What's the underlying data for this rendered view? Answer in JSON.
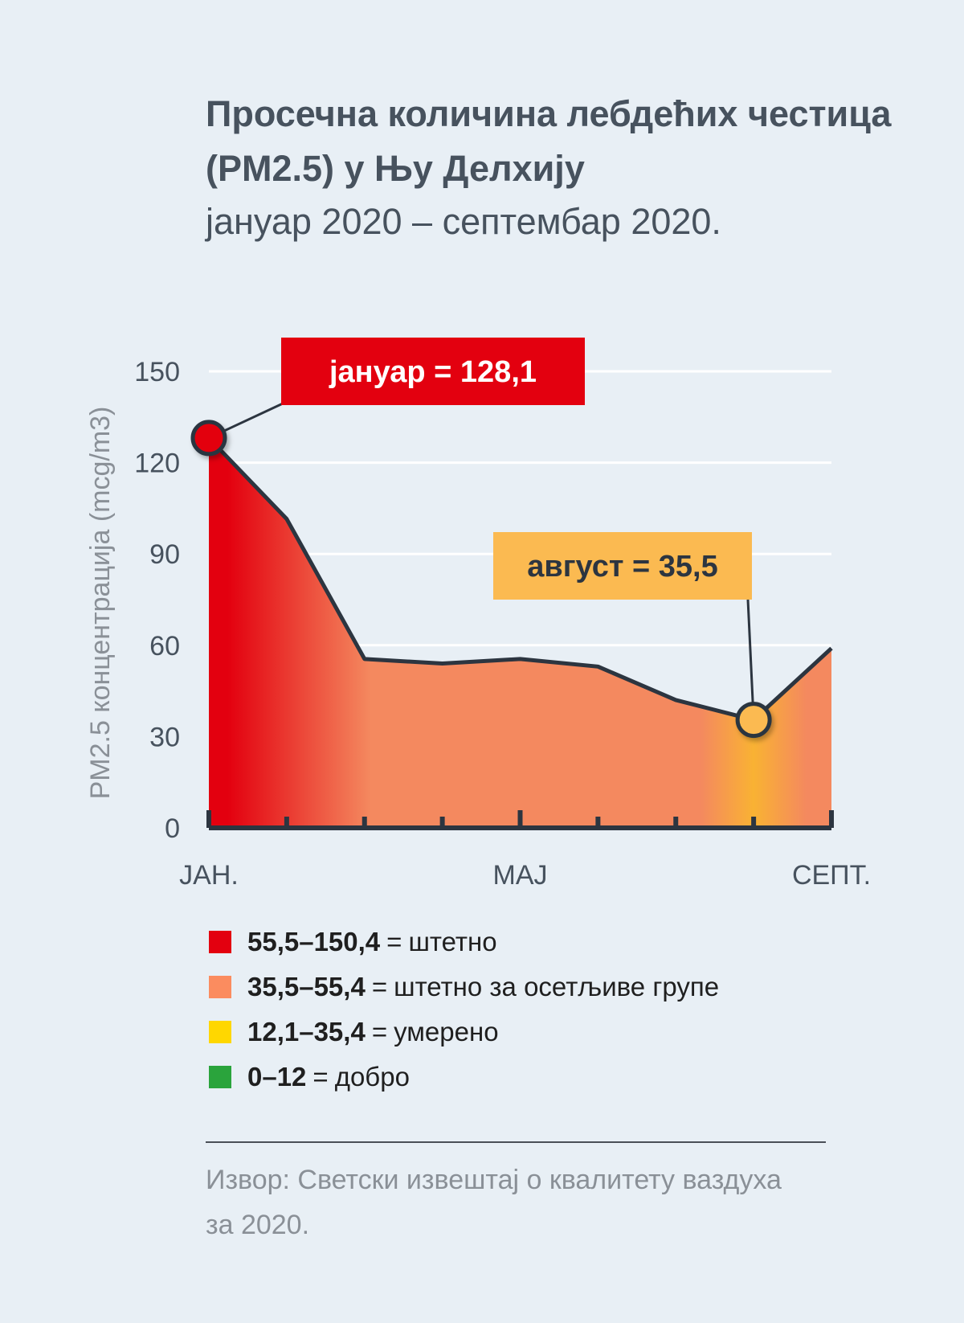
{
  "header": {
    "title": "Просечна количина лебдећих честица (PM2.5) у Њу Делхију",
    "subtitle": "јануар 2020 – септембар 2020."
  },
  "chart_data": {
    "type": "area",
    "ylabel": "PM2.5 концентрација (mcg/m3)",
    "ylim": [
      0,
      150
    ],
    "y_ticks": [
      "0",
      "30",
      "60",
      "90",
      "120",
      "150"
    ],
    "x_tick_labels": [
      {
        "index": 0,
        "label": "JAH."
      },
      {
        "index": 4,
        "label": "MAJ"
      },
      {
        "index": 8,
        "label": "СЕПТ."
      }
    ],
    "x": [
      0,
      1,
      2,
      3,
      4,
      5,
      6,
      7,
      8
    ],
    "values": [
      128.1,
      101.5,
      55.5,
      54.0,
      55.5,
      53.0,
      42.0,
      35.5,
      59.0
    ],
    "grid": true,
    "annotations": [
      {
        "index": 0,
        "text": "јануар = 128,1",
        "color": "#e3000f"
      },
      {
        "index": 7,
        "text": "август = 35,5",
        "color": "#fbba51"
      }
    ],
    "fill_colors": {
      "harmful": "#e3000f",
      "sensitive": "#f4895f",
      "moderate": "#f9b233"
    },
    "line_color": "#2c3540"
  },
  "legend": [
    {
      "range": "55,5–150,4",
      "eq": "=",
      "label": "штетно",
      "color": "#e3000f"
    },
    {
      "range": "35,5–55,4",
      "eq": "=",
      "label": "штетно за осетљиве групе",
      "color": "#fb8c5f"
    },
    {
      "range": "12,1–35,4",
      "eq": "=",
      "label": "умерено",
      "color": "#ffd700"
    },
    {
      "range": "0–12",
      "eq": "=",
      "label": "добро",
      "color": "#2aa43c"
    }
  ],
  "source": "Извор: Светски извештај о квалитету ваздуха за 2020."
}
